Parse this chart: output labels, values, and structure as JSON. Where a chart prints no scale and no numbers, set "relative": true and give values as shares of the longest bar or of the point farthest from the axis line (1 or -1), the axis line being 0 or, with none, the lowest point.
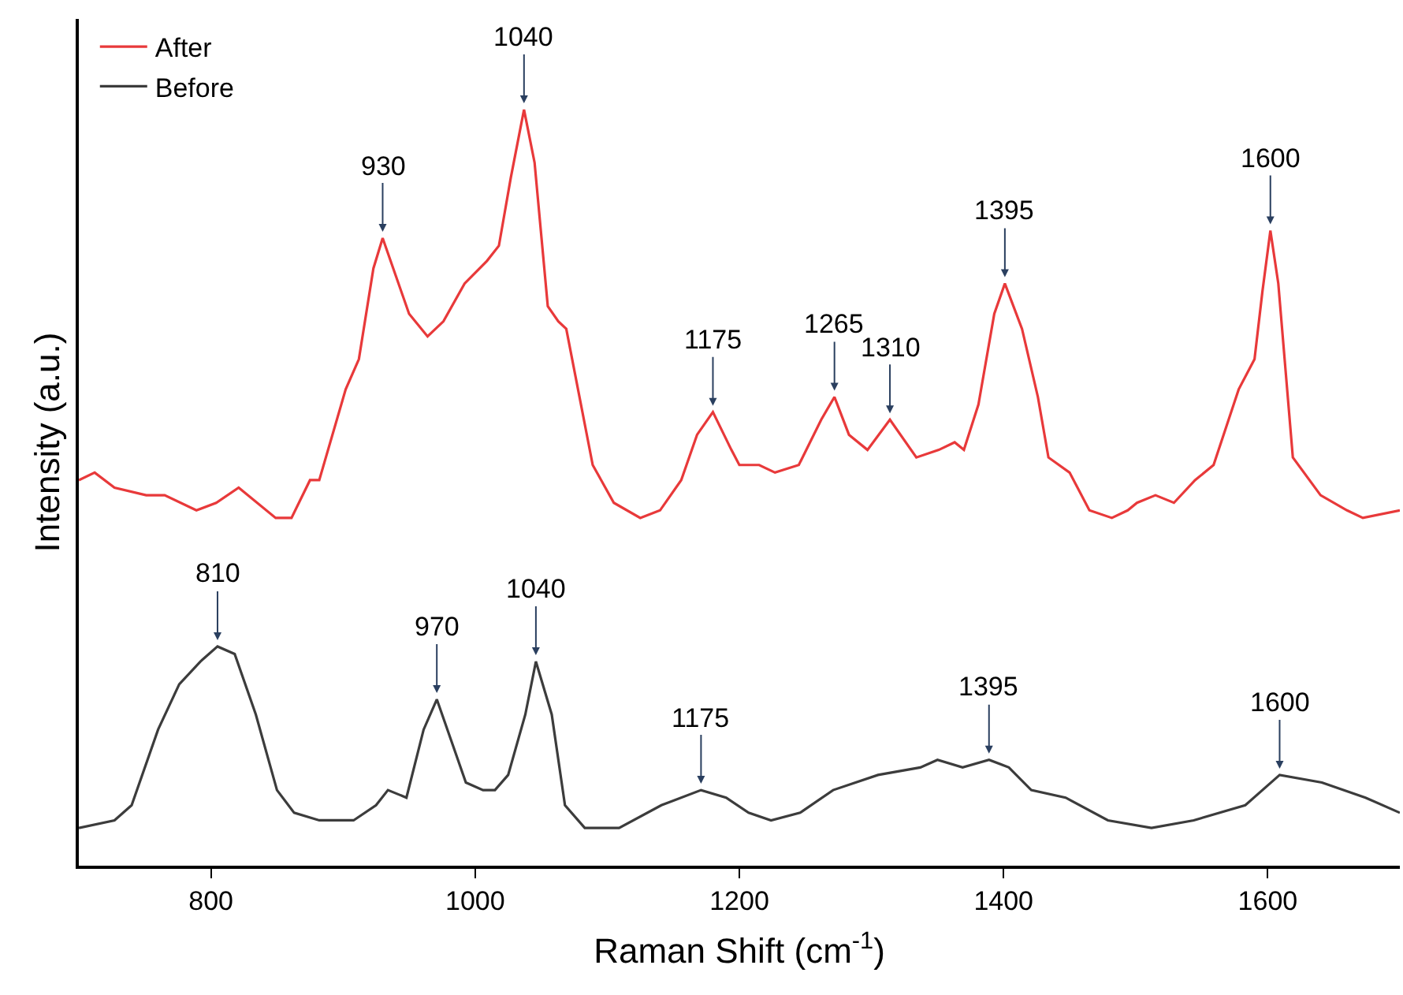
{
  "chart_data": {
    "type": "line",
    "relative": true,
    "xlabel": "Raman Shift (cm$^{-1}$)",
    "ylabel": "Intensity (a.u.)",
    "xlim": [
      700,
      1700
    ],
    "xticks": [
      800,
      1000,
      1200,
      1400,
      1600
    ],
    "legend": "top left",
    "marker": "none",
    "line_style": "solid",
    "tick_labels": "x",
    "series": [
      {
        "name": "After",
        "color": "#e8393a",
        "x": [
          700,
          712,
          727,
          751,
          765,
          789,
          804,
          821,
          849,
          861,
          875,
          882,
          902,
          912,
          923,
          930,
          940,
          950,
          964,
          976,
          992,
          1009,
          1018,
          1027,
          1037,
          1045,
          1055,
          1063,
          1069,
          1089,
          1105,
          1125,
          1140,
          1156,
          1168,
          1180,
          1194,
          1200,
          1215,
          1227,
          1245,
          1262,
          1272,
          1283,
          1297,
          1314,
          1334,
          1351,
          1363,
          1370,
          1381,
          1393,
          1401,
          1414,
          1426,
          1434,
          1450,
          1465,
          1482,
          1494,
          1501,
          1515,
          1529,
          1545,
          1559,
          1578,
          1590,
          1596,
          1602,
          1608,
          1619,
          1640,
          1660,
          1672,
          1700
        ],
        "values": [
          0.51,
          0.52,
          0.5,
          0.49,
          0.49,
          0.47,
          0.48,
          0.5,
          0.46,
          0.46,
          0.51,
          0.51,
          0.63,
          0.67,
          0.79,
          0.83,
          0.78,
          0.73,
          0.7,
          0.72,
          0.77,
          0.8,
          0.82,
          0.91,
          1.0,
          0.93,
          0.74,
          0.72,
          0.71,
          0.53,
          0.48,
          0.46,
          0.47,
          0.51,
          0.57,
          0.6,
          0.55,
          0.53,
          0.53,
          0.52,
          0.53,
          0.59,
          0.62,
          0.57,
          0.55,
          0.59,
          0.54,
          0.55,
          0.56,
          0.55,
          0.61,
          0.73,
          0.77,
          0.71,
          0.62,
          0.54,
          0.52,
          0.47,
          0.46,
          0.47,
          0.48,
          0.49,
          0.48,
          0.51,
          0.53,
          0.63,
          0.67,
          0.76,
          0.84,
          0.77,
          0.54,
          0.49,
          0.47,
          0.46,
          0.47
        ]
      },
      {
        "name": "Before",
        "color": "#3c3c3c",
        "x": [
          700,
          727,
          740,
          760,
          776,
          792,
          805,
          818,
          834,
          850,
          863,
          882,
          908,
          925,
          934,
          948,
          961,
          971,
          983,
          993,
          1006,
          1015,
          1025,
          1038,
          1046,
          1058,
          1068,
          1083,
          1109,
          1141,
          1171,
          1190,
          1207,
          1224,
          1246,
          1271,
          1305,
          1337,
          1350,
          1369,
          1389,
          1404,
          1421,
          1447,
          1479,
          1512,
          1544,
          1583,
          1609,
          1641,
          1674,
          1700
        ],
        "values": [
          0.05,
          0.06,
          0.08,
          0.18,
          0.24,
          0.27,
          0.29,
          0.28,
          0.2,
          0.1,
          0.07,
          0.06,
          0.06,
          0.08,
          0.1,
          0.09,
          0.18,
          0.22,
          0.16,
          0.11,
          0.1,
          0.1,
          0.12,
          0.2,
          0.27,
          0.2,
          0.08,
          0.05,
          0.05,
          0.08,
          0.1,
          0.09,
          0.07,
          0.06,
          0.07,
          0.1,
          0.12,
          0.13,
          0.14,
          0.13,
          0.14,
          0.13,
          0.1,
          0.09,
          0.06,
          0.05,
          0.06,
          0.08,
          0.12,
          0.11,
          0.09,
          0.07
        ]
      }
    ],
    "annotations": [
      {
        "text": "930",
        "x": 930,
        "y": 0.83
      },
      {
        "text": "1040",
        "x": 1037,
        "y": 1.0
      },
      {
        "text": "1175",
        "x": 1180,
        "y": 0.6
      },
      {
        "text": "1265",
        "x": 1272,
        "y": 0.62
      },
      {
        "text": "1310",
        "x": 1314,
        "y": 0.59
      },
      {
        "text": "1395",
        "x": 1401,
        "y": 0.77
      },
      {
        "text": "1600",
        "x": 1602,
        "y": 0.84
      },
      {
        "text": "810",
        "x": 805,
        "y": 0.29
      },
      {
        "text": "970",
        "x": 971,
        "y": 0.22
      },
      {
        "text": "1040",
        "x": 1046,
        "y": 0.27
      },
      {
        "text": "1175",
        "x": 1171,
        "y": 0.1
      },
      {
        "text": "1395",
        "x": 1389,
        "y": 0.14
      },
      {
        "text": "1600",
        "x": 1609,
        "y": 0.12
      }
    ]
  }
}
